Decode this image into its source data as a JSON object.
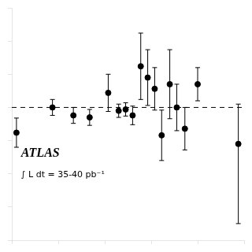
{
  "chart_data": {
    "type": "scatter",
    "x": [
      0.02,
      0.175,
      0.265,
      0.335,
      0.415,
      0.46,
      0.49,
      0.52,
      0.555,
      0.585,
      0.615,
      0.645,
      0.68,
      0.71,
      0.745,
      0.8,
      0.975
    ],
    "values": [
      0.62,
      1.0,
      0.88,
      0.85,
      1.22,
      0.95,
      0.97,
      0.88,
      1.62,
      1.45,
      1.28,
      0.58,
      1.35,
      1.0,
      0.68,
      1.35,
      0.45
    ],
    "yerr_lo": [
      0.22,
      0.12,
      0.12,
      0.12,
      0.28,
      0.1,
      0.1,
      0.14,
      0.5,
      0.42,
      0.32,
      0.38,
      0.52,
      0.35,
      0.32,
      0.25,
      1.2
    ],
    "yerr_hi": [
      0.22,
      0.12,
      0.12,
      0.12,
      0.28,
      0.1,
      0.1,
      0.14,
      0.5,
      0.42,
      0.32,
      0.38,
      0.52,
      0.35,
      0.32,
      0.25,
      0.6
    ],
    "color": "black",
    "marker": "circle",
    "hline": 1.0,
    "annotations": [
      "ATLAS",
      "∫ L dt = 35-40 pb⁻¹"
    ],
    "xlim": [
      0.0,
      1.0
    ],
    "xticks": [
      0.0,
      0.2,
      0.4,
      0.6,
      0.8,
      1.0
    ],
    "ylim": [
      -1.0,
      2.5
    ],
    "yticks": [
      -1.0,
      -0.5,
      0.0,
      0.5,
      1.0,
      1.5,
      2.0,
      2.5
    ],
    "grid": false,
    "tick_labels": false
  }
}
